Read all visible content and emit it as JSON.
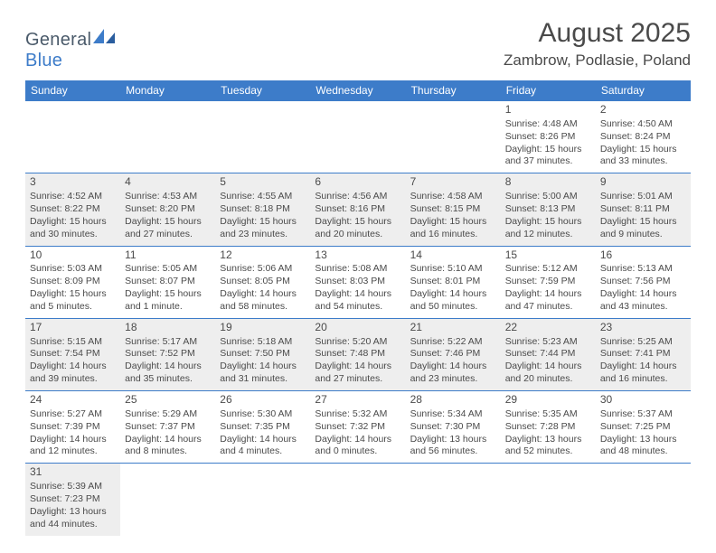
{
  "brand": {
    "part1": "General",
    "part2": "Blue"
  },
  "title": "August 2025",
  "location": "Zambrow, Podlasie, Poland",
  "headerColors": {
    "bg": "#3d7cc9",
    "fg": "#ffffff"
  },
  "shadedBg": "#eeeeee",
  "ruleColor": "#3d7cc9",
  "dayNames": [
    "Sunday",
    "Monday",
    "Tuesday",
    "Wednesday",
    "Thursday",
    "Friday",
    "Saturday"
  ],
  "weeks": [
    {
      "shaded": false,
      "days": [
        null,
        null,
        null,
        null,
        null,
        {
          "n": "1",
          "sunrise": "Sunrise: 4:48 AM",
          "sunset": "Sunset: 8:26 PM",
          "d1": "Daylight: 15 hours",
          "d2": "and 37 minutes."
        },
        {
          "n": "2",
          "sunrise": "Sunrise: 4:50 AM",
          "sunset": "Sunset: 8:24 PM",
          "d1": "Daylight: 15 hours",
          "d2": "and 33 minutes."
        }
      ]
    },
    {
      "shaded": true,
      "days": [
        {
          "n": "3",
          "sunrise": "Sunrise: 4:52 AM",
          "sunset": "Sunset: 8:22 PM",
          "d1": "Daylight: 15 hours",
          "d2": "and 30 minutes."
        },
        {
          "n": "4",
          "sunrise": "Sunrise: 4:53 AM",
          "sunset": "Sunset: 8:20 PM",
          "d1": "Daylight: 15 hours",
          "d2": "and 27 minutes."
        },
        {
          "n": "5",
          "sunrise": "Sunrise: 4:55 AM",
          "sunset": "Sunset: 8:18 PM",
          "d1": "Daylight: 15 hours",
          "d2": "and 23 minutes."
        },
        {
          "n": "6",
          "sunrise": "Sunrise: 4:56 AM",
          "sunset": "Sunset: 8:16 PM",
          "d1": "Daylight: 15 hours",
          "d2": "and 20 minutes."
        },
        {
          "n": "7",
          "sunrise": "Sunrise: 4:58 AM",
          "sunset": "Sunset: 8:15 PM",
          "d1": "Daylight: 15 hours",
          "d2": "and 16 minutes."
        },
        {
          "n": "8",
          "sunrise": "Sunrise: 5:00 AM",
          "sunset": "Sunset: 8:13 PM",
          "d1": "Daylight: 15 hours",
          "d2": "and 12 minutes."
        },
        {
          "n": "9",
          "sunrise": "Sunrise: 5:01 AM",
          "sunset": "Sunset: 8:11 PM",
          "d1": "Daylight: 15 hours",
          "d2": "and 9 minutes."
        }
      ]
    },
    {
      "shaded": false,
      "days": [
        {
          "n": "10",
          "sunrise": "Sunrise: 5:03 AM",
          "sunset": "Sunset: 8:09 PM",
          "d1": "Daylight: 15 hours",
          "d2": "and 5 minutes."
        },
        {
          "n": "11",
          "sunrise": "Sunrise: 5:05 AM",
          "sunset": "Sunset: 8:07 PM",
          "d1": "Daylight: 15 hours",
          "d2": "and 1 minute."
        },
        {
          "n": "12",
          "sunrise": "Sunrise: 5:06 AM",
          "sunset": "Sunset: 8:05 PM",
          "d1": "Daylight: 14 hours",
          "d2": "and 58 minutes."
        },
        {
          "n": "13",
          "sunrise": "Sunrise: 5:08 AM",
          "sunset": "Sunset: 8:03 PM",
          "d1": "Daylight: 14 hours",
          "d2": "and 54 minutes."
        },
        {
          "n": "14",
          "sunrise": "Sunrise: 5:10 AM",
          "sunset": "Sunset: 8:01 PM",
          "d1": "Daylight: 14 hours",
          "d2": "and 50 minutes."
        },
        {
          "n": "15",
          "sunrise": "Sunrise: 5:12 AM",
          "sunset": "Sunset: 7:59 PM",
          "d1": "Daylight: 14 hours",
          "d2": "and 47 minutes."
        },
        {
          "n": "16",
          "sunrise": "Sunrise: 5:13 AM",
          "sunset": "Sunset: 7:56 PM",
          "d1": "Daylight: 14 hours",
          "d2": "and 43 minutes."
        }
      ]
    },
    {
      "shaded": true,
      "days": [
        {
          "n": "17",
          "sunrise": "Sunrise: 5:15 AM",
          "sunset": "Sunset: 7:54 PM",
          "d1": "Daylight: 14 hours",
          "d2": "and 39 minutes."
        },
        {
          "n": "18",
          "sunrise": "Sunrise: 5:17 AM",
          "sunset": "Sunset: 7:52 PM",
          "d1": "Daylight: 14 hours",
          "d2": "and 35 minutes."
        },
        {
          "n": "19",
          "sunrise": "Sunrise: 5:18 AM",
          "sunset": "Sunset: 7:50 PM",
          "d1": "Daylight: 14 hours",
          "d2": "and 31 minutes."
        },
        {
          "n": "20",
          "sunrise": "Sunrise: 5:20 AM",
          "sunset": "Sunset: 7:48 PM",
          "d1": "Daylight: 14 hours",
          "d2": "and 27 minutes."
        },
        {
          "n": "21",
          "sunrise": "Sunrise: 5:22 AM",
          "sunset": "Sunset: 7:46 PM",
          "d1": "Daylight: 14 hours",
          "d2": "and 23 minutes."
        },
        {
          "n": "22",
          "sunrise": "Sunrise: 5:23 AM",
          "sunset": "Sunset: 7:44 PM",
          "d1": "Daylight: 14 hours",
          "d2": "and 20 minutes."
        },
        {
          "n": "23",
          "sunrise": "Sunrise: 5:25 AM",
          "sunset": "Sunset: 7:41 PM",
          "d1": "Daylight: 14 hours",
          "d2": "and 16 minutes."
        }
      ]
    },
    {
      "shaded": false,
      "days": [
        {
          "n": "24",
          "sunrise": "Sunrise: 5:27 AM",
          "sunset": "Sunset: 7:39 PM",
          "d1": "Daylight: 14 hours",
          "d2": "and 12 minutes."
        },
        {
          "n": "25",
          "sunrise": "Sunrise: 5:29 AM",
          "sunset": "Sunset: 7:37 PM",
          "d1": "Daylight: 14 hours",
          "d2": "and 8 minutes."
        },
        {
          "n": "26",
          "sunrise": "Sunrise: 5:30 AM",
          "sunset": "Sunset: 7:35 PM",
          "d1": "Daylight: 14 hours",
          "d2": "and 4 minutes."
        },
        {
          "n": "27",
          "sunrise": "Sunrise: 5:32 AM",
          "sunset": "Sunset: 7:32 PM",
          "d1": "Daylight: 14 hours",
          "d2": "and 0 minutes."
        },
        {
          "n": "28",
          "sunrise": "Sunrise: 5:34 AM",
          "sunset": "Sunset: 7:30 PM",
          "d1": "Daylight: 13 hours",
          "d2": "and 56 minutes."
        },
        {
          "n": "29",
          "sunrise": "Sunrise: 5:35 AM",
          "sunset": "Sunset: 7:28 PM",
          "d1": "Daylight: 13 hours",
          "d2": "and 52 minutes."
        },
        {
          "n": "30",
          "sunrise": "Sunrise: 5:37 AM",
          "sunset": "Sunset: 7:25 PM",
          "d1": "Daylight: 13 hours",
          "d2": "and 48 minutes."
        }
      ]
    },
    {
      "shaded": true,
      "days": [
        {
          "n": "31",
          "sunrise": "Sunrise: 5:39 AM",
          "sunset": "Sunset: 7:23 PM",
          "d1": "Daylight: 13 hours",
          "d2": "and 44 minutes."
        },
        null,
        null,
        null,
        null,
        null,
        null
      ]
    }
  ]
}
